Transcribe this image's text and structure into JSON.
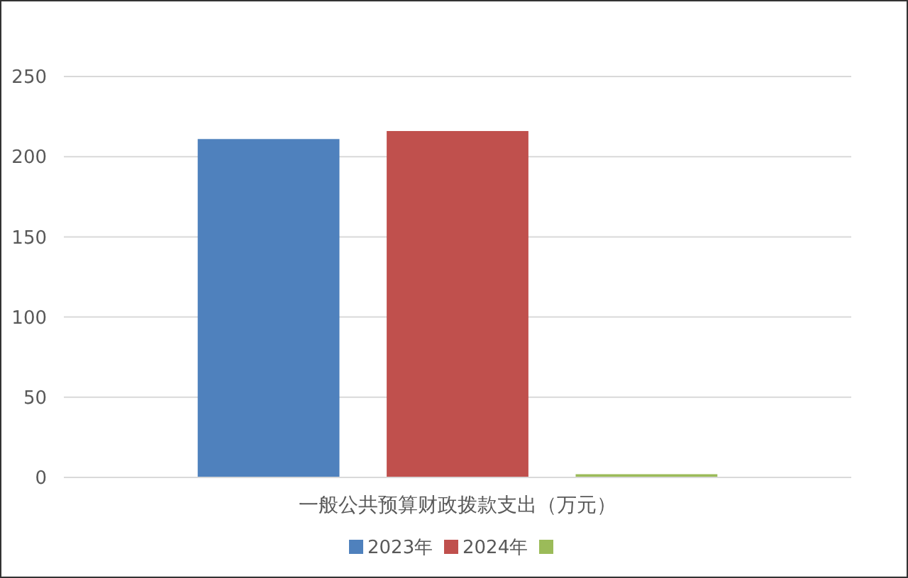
{
  "chart_data": {
    "type": "bar",
    "categories": [
      "一般公共预算财政拨款支出（万元）"
    ],
    "series": [
      {
        "name": "2023年",
        "color": "#4f81bd",
        "values": [
          211
        ]
      },
      {
        "name": "2024年",
        "color": "#c0504d",
        "values": [
          216
        ]
      },
      {
        "color": "#9bbb59",
        "values": [
          2
        ]
      }
    ],
    "ylim": [
      0,
      250
    ],
    "yticks": [
      0,
      50,
      100,
      150,
      200,
      250
    ],
    "grid": "y",
    "legend": "bottom"
  }
}
